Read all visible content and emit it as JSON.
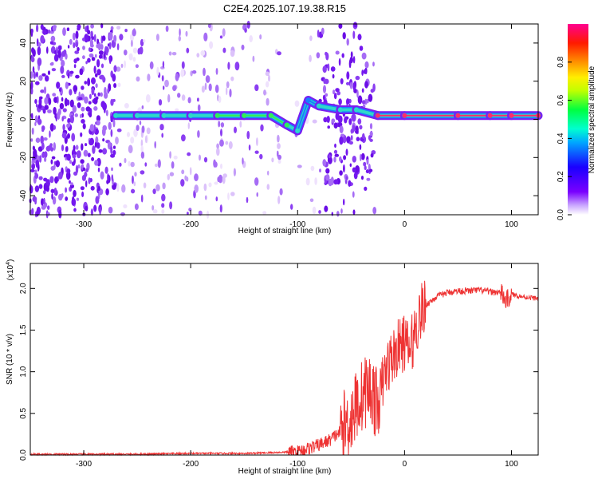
{
  "title": "C2E4.2025.107.19.38.R15",
  "colors": {
    "snr_line": "#ee3333",
    "spec_low": "#e9d8fb",
    "spec_mid": "#7a1cf0",
    "track_edge": "#1a7cff",
    "track_core": "#2fd9c8",
    "track_hot": "#ff2d6a"
  },
  "chart_data": [
    {
      "type": "heatmap",
      "xlabel": "Height of straight line (km)",
      "ylabel": "Frequency (Hz)",
      "xlim": [
        -350,
        125
      ],
      "ylim": [
        -50,
        50
      ],
      "xticks": [
        -300,
        -200,
        -100,
        0,
        100
      ],
      "yticks": [
        -40,
        -20,
        0,
        20,
        40
      ],
      "grid": false,
      "colorbar": {
        "label": "Normalized spectral amplitude",
        "range": [
          0.0,
          1.0
        ],
        "ticks": [
          "0.0",
          "0.2",
          "0.4",
          "0.6",
          "0.8"
        ],
        "colormap": [
          "#ffffff",
          "#7a00ff",
          "#0000ff",
          "#00c8ff",
          "#00ff66",
          "#ffff00",
          "#ff8800",
          "#ff0000",
          "#ff0088"
        ]
      },
      "ridge": [
        {
          "x": -270,
          "freq": 2,
          "amp": 0.4
        },
        {
          "x": -250,
          "freq": 2,
          "amp": 0.45
        },
        {
          "x": -225,
          "freq": 2,
          "amp": 0.4
        },
        {
          "x": -200,
          "freq": 2,
          "amp": 0.45
        },
        {
          "x": -175,
          "freq": 2,
          "amp": 0.5
        },
        {
          "x": -150,
          "freq": 2,
          "amp": 0.55
        },
        {
          "x": -125,
          "freq": 2,
          "amp": 0.6
        },
        {
          "x": -110,
          "freq": -3,
          "amp": 0.55
        },
        {
          "x": -100,
          "freq": -6,
          "amp": 0.4
        },
        {
          "x": -90,
          "freq": 10,
          "amp": 0.3
        },
        {
          "x": -80,
          "freq": 7,
          "amp": 0.45
        },
        {
          "x": -60,
          "freq": 5,
          "amp": 0.35
        },
        {
          "x": -45,
          "freq": 5,
          "amp": 0.4
        },
        {
          "x": -25,
          "freq": 2,
          "amp": 0.95
        },
        {
          "x": 0,
          "freq": 2,
          "amp": 1.0
        },
        {
          "x": 50,
          "freq": 2,
          "amp": 1.0
        },
        {
          "x": 80,
          "freq": 2,
          "amp": 0.9
        },
        {
          "x": 100,
          "freq": 2,
          "amp": 0.95
        },
        {
          "x": 125,
          "freq": 2,
          "amp": 0.9
        }
      ]
    },
    {
      "type": "line",
      "xlabel": "Height of straight line (km)",
      "ylabel": "SNR (10 * v/v)",
      "yscale_label": "(x10",
      "yscale_exp": "4",
      "xlim": [
        -350,
        125
      ],
      "ylim": [
        0,
        2.3
      ],
      "xticks": [
        -300,
        -200,
        -100,
        0,
        100
      ],
      "yticks": [
        "0.0",
        "0.5",
        "1.0",
        "1.5",
        "2.0"
      ],
      "grid": false,
      "series": [
        {
          "color": "#ee3333",
          "x": [
            -350,
            -300,
            -250,
            -200,
            -150,
            -120,
            -100,
            -90,
            -80,
            -70,
            -60,
            -50,
            -45,
            -40,
            -35,
            -30,
            -25,
            -20,
            -15,
            -10,
            -5,
            0,
            5,
            10,
            15,
            20,
            25,
            30,
            40,
            50,
            60,
            70,
            80,
            90,
            95,
            100,
            110,
            125
          ],
          "y": [
            0.01,
            0.01,
            0.01,
            0.02,
            0.02,
            0.03,
            0.04,
            0.08,
            0.12,
            0.18,
            0.28,
            0.45,
            0.6,
            0.7,
            0.8,
            0.75,
            0.55,
            0.9,
            1.1,
            1.2,
            1.3,
            1.35,
            1.25,
            1.5,
            1.7,
            1.8,
            1.85,
            1.9,
            1.95,
            1.97,
            1.97,
            1.98,
            1.96,
            1.95,
            1.85,
            1.93,
            1.9,
            1.88
          ]
        }
      ]
    }
  ]
}
